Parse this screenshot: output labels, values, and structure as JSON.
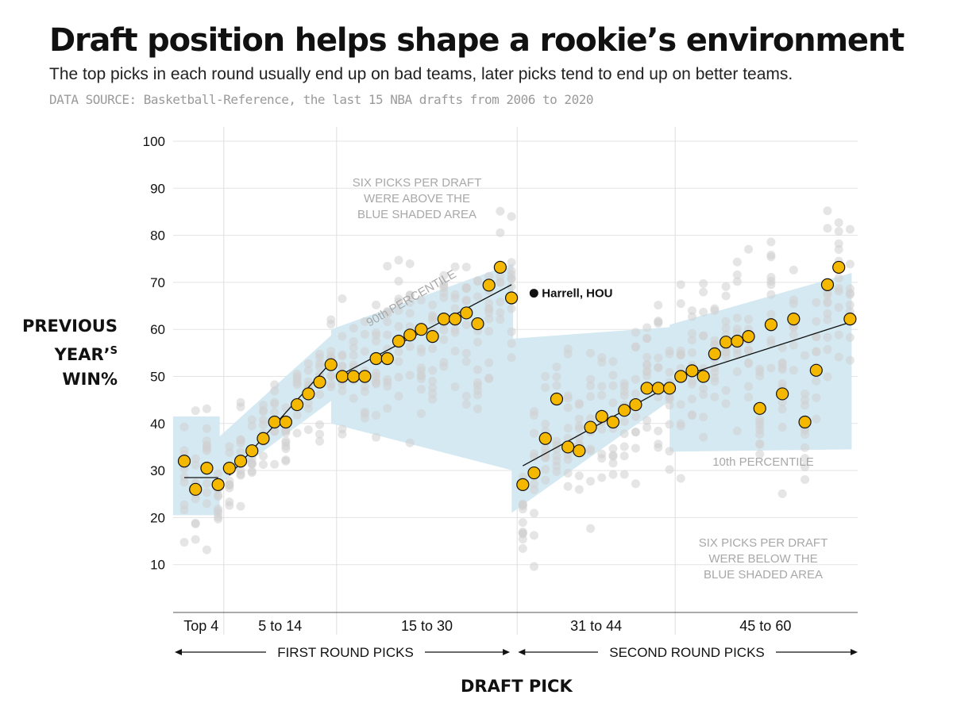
{
  "title": "Draft position helps shape a rookie’s environment",
  "subtitle": "The top picks in each round usually end up on bad teams, later picks tend to end up on better teams.",
  "source": "DATA SOURCE: Basketball-Reference, the last 15 NBA drafts from 2006 to 2020",
  "y_title": {
    "line1": "PREVIOUS",
    "line2a": "YEAR’",
    "line2b": "S",
    "line3": "WIN%"
  },
  "x_title": "DRAFT PICK",
  "notes": {
    "above": [
      "SIX PICKS PER DRAFT",
      "WERE ABOVE THE",
      "BLUE SHADED AREA"
    ],
    "below": [
      "SIX PICKS PER DRAFT",
      "WERE BELOW THE",
      "BLUE SHADED AREA"
    ],
    "p90": "90th PERCENTILE",
    "p10": "10th PERCENTILE",
    "highlight": "Harrell, HOU"
  },
  "colors": {
    "median": "#f5b800",
    "band": "#d4e9f1",
    "gray": "#cfcfcf",
    "grid": "#e3e3e3"
  },
  "chart_data": {
    "type": "scatter",
    "x_range": [
      1,
      60
    ],
    "ylim": [
      0,
      100
    ],
    "y_ticks": [
      10,
      20,
      30,
      40,
      50,
      60,
      70,
      80,
      90,
      100
    ],
    "groups": [
      {
        "label": "Top 4",
        "start": 1,
        "end": 4
      },
      {
        "label": "5 to 14",
        "start": 5,
        "end": 14
      },
      {
        "label": "15 to 30",
        "start": 15,
        "end": 30
      },
      {
        "label": "31 to 44",
        "start": 31,
        "end": 44
      },
      {
        "label": "45 to 60",
        "start": 45,
        "end": 60
      }
    ],
    "rounds": [
      {
        "label": "FIRST ROUND PICKS",
        "start": 1,
        "end": 30
      },
      {
        "label": "SECOND ROUND PICKS",
        "start": 31,
        "end": 60
      }
    ],
    "median_series": [
      {
        "pick": 1,
        "value": 32
      },
      {
        "pick": 2,
        "value": 26
      },
      {
        "pick": 3,
        "value": 30.5
      },
      {
        "pick": 4,
        "value": 27
      },
      {
        "pick": 5,
        "value": 30.5
      },
      {
        "pick": 6,
        "value": 32
      },
      {
        "pick": 7,
        "value": 34.2
      },
      {
        "pick": 8,
        "value": 36.8
      },
      {
        "pick": 9,
        "value": 40.3
      },
      {
        "pick": 10,
        "value": 40.3
      },
      {
        "pick": 11,
        "value": 44
      },
      {
        "pick": 12,
        "value": 46.3
      },
      {
        "pick": 13,
        "value": 48.8
      },
      {
        "pick": 14,
        "value": 52.5
      },
      {
        "pick": 15,
        "value": 50
      },
      {
        "pick": 16,
        "value": 50
      },
      {
        "pick": 17,
        "value": 50
      },
      {
        "pick": 18,
        "value": 53.8
      },
      {
        "pick": 19,
        "value": 53.8
      },
      {
        "pick": 20,
        "value": 57.5
      },
      {
        "pick": 21,
        "value": 58.8
      },
      {
        "pick": 22,
        "value": 60
      },
      {
        "pick": 23,
        "value": 58.5
      },
      {
        "pick": 24,
        "value": 62.2
      },
      {
        "pick": 25,
        "value": 62.2
      },
      {
        "pick": 26,
        "value": 63.5
      },
      {
        "pick": 27,
        "value": 61.2
      },
      {
        "pick": 28,
        "value": 69.4
      },
      {
        "pick": 29,
        "value": 73.2
      },
      {
        "pick": 30,
        "value": 66.7
      },
      {
        "pick": 31,
        "value": 27
      },
      {
        "pick": 32,
        "value": 29.5
      },
      {
        "pick": 33,
        "value": 36.8
      },
      {
        "pick": 34,
        "value": 45.2
      },
      {
        "pick": 35,
        "value": 35
      },
      {
        "pick": 36,
        "value": 34.2
      },
      {
        "pick": 37,
        "value": 39.2
      },
      {
        "pick": 38,
        "value": 41.5
      },
      {
        "pick": 39,
        "value": 40.3
      },
      {
        "pick": 40,
        "value": 42.8
      },
      {
        "pick": 41,
        "value": 44
      },
      {
        "pick": 42,
        "value": 47.5
      },
      {
        "pick": 43,
        "value": 47.5
      },
      {
        "pick": 44,
        "value": 47.5
      },
      {
        "pick": 45,
        "value": 50
      },
      {
        "pick": 46,
        "value": 51.2
      },
      {
        "pick": 47,
        "value": 50
      },
      {
        "pick": 48,
        "value": 54.8
      },
      {
        "pick": 49,
        "value": 57.3
      },
      {
        "pick": 50,
        "value": 57.5
      },
      {
        "pick": 51,
        "value": 58.5
      },
      {
        "pick": 52,
        "value": 43.2
      },
      {
        "pick": 53,
        "value": 61
      },
      {
        "pick": 54,
        "value": 46.3
      },
      {
        "pick": 55,
        "value": 62.2
      },
      {
        "pick": 56,
        "value": 40.3
      },
      {
        "pick": 57,
        "value": 51.3
      },
      {
        "pick": 58,
        "value": 69.5
      },
      {
        "pick": 59,
        "value": 73.2
      },
      {
        "pick": 60,
        "value": 62.2
      }
    ],
    "trend_lines": [
      {
        "from": [
          1,
          28.5
        ],
        "to": [
          4,
          28.5
        ]
      },
      {
        "from": [
          5,
          29
        ],
        "to": [
          14,
          53
        ]
      },
      {
        "from": [
          15,
          50.5
        ],
        "to": [
          30,
          69.5
        ]
      },
      {
        "from": [
          31,
          31
        ],
        "to": [
          44,
          48
        ]
      },
      {
        "from": [
          45,
          50
        ],
        "to": [
          60,
          61.5
        ]
      }
    ],
    "percentile_band": {
      "top_4": {
        "p90": [
          41.5,
          41.5
        ],
        "p10": [
          20.5,
          20.5
        ]
      },
      "5_to_14": {
        "p90": [
          37,
          59
        ],
        "p10": [
          27,
          45
        ]
      },
      "15_to_30": {
        "p90": [
          60,
          74
        ],
        "p10": [
          40,
          30
        ]
      },
      "31_to_44": {
        "p90": [
          58,
          60.5
        ],
        "p10": [
          21,
          45
        ]
      },
      "45_to_60": {
        "p90": [
          61,
          72
        ],
        "p10": [
          34,
          34.5
        ]
      }
    },
    "highlight_point": {
      "label": "Harrell, HOU",
      "pick": 31,
      "value": 68.2
    }
  }
}
